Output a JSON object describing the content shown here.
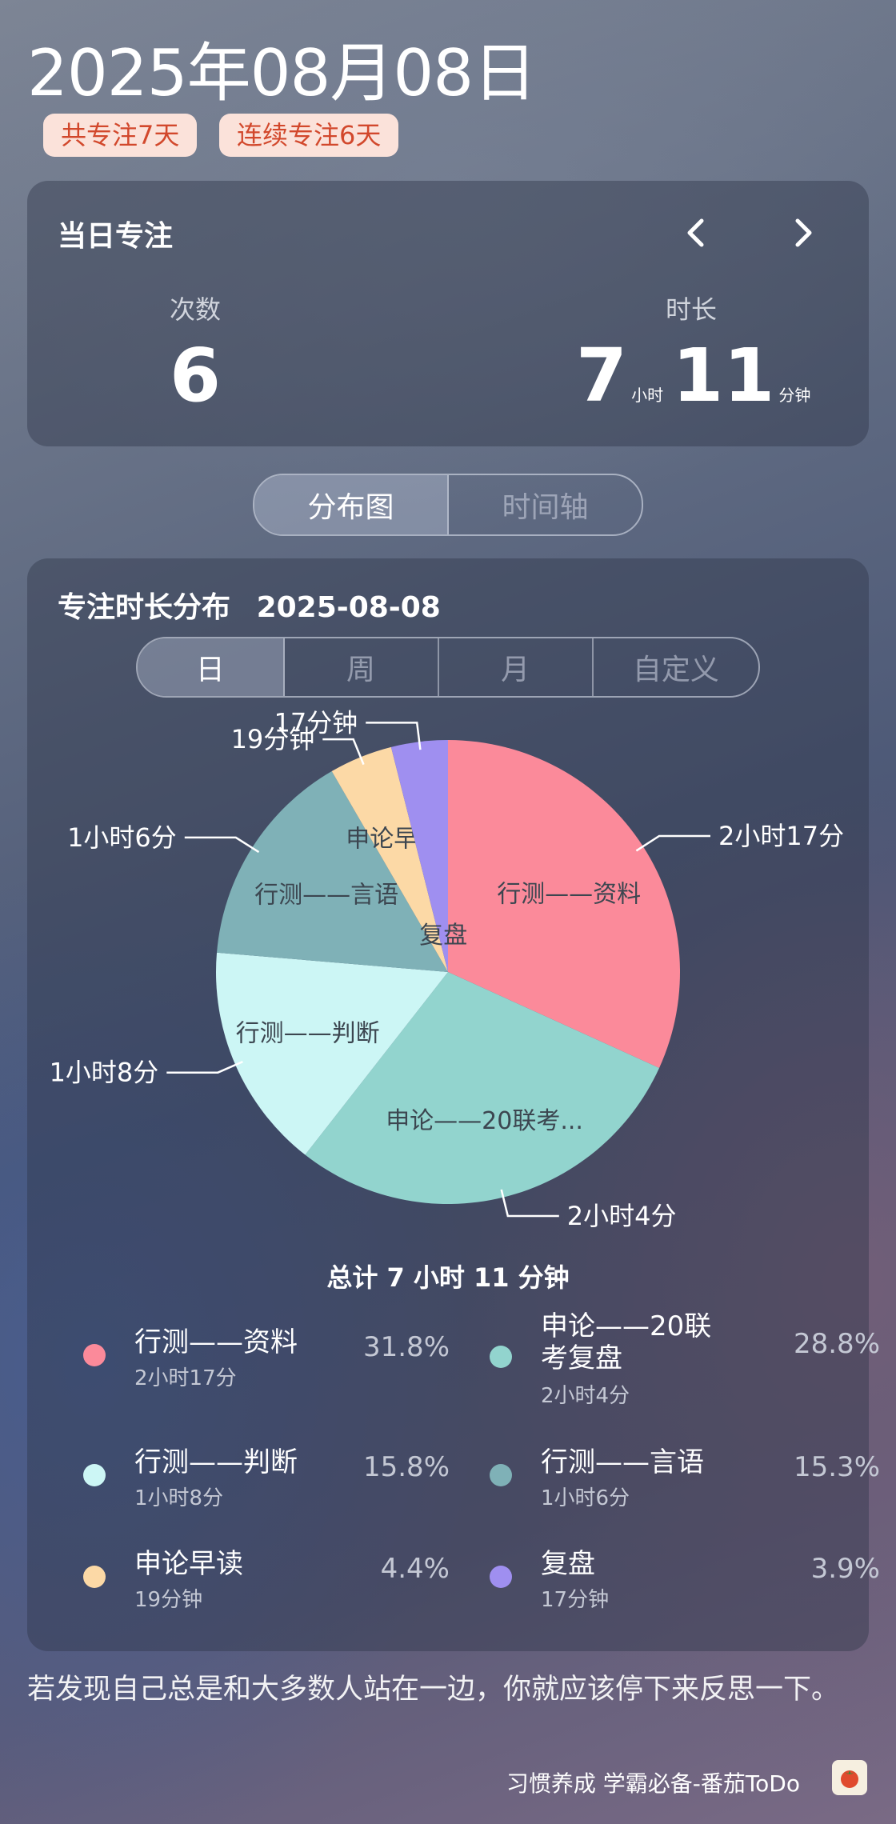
{
  "header": {
    "date": "2025年08月08日",
    "badge_total": "共专注7天",
    "badge_streak": "连续专注6天"
  },
  "daily": {
    "title": "当日专注",
    "prev_icon": "chevron-left-icon",
    "next_icon": "chevron-right-icon",
    "count_label": "次数",
    "count_value": "6",
    "duration_label": "时长",
    "hours_value": "7",
    "hours_unit": "小时",
    "minutes_value": "11",
    "minutes_unit": "分钟"
  },
  "view_tabs": [
    {
      "label": "分布图",
      "active": true
    },
    {
      "label": "时间轴",
      "active": false
    }
  ],
  "distribution": {
    "title": "专注时长分布",
    "date": "2025-08-08",
    "period_tabs": [
      {
        "label": "日",
        "active": true
      },
      {
        "label": "周",
        "active": false
      },
      {
        "label": "月",
        "active": false
      },
      {
        "label": "自定义",
        "active": false
      }
    ],
    "total": "总计 7 小时 11 分钟"
  },
  "chart_data": {
    "type": "pie",
    "unit": "minutes",
    "slices": [
      {
        "label": "行测——资料",
        "short_label": "行测——资料",
        "value": 137,
        "duration": "2小时17分",
        "percent": "31.8%",
        "color": "#fb8a9a"
      },
      {
        "label": "申论——20联考复盘",
        "short_label": "申论——20联考...",
        "value": 124,
        "duration": "2小时4分",
        "percent": "28.8%",
        "color": "#92d4ce"
      },
      {
        "label": "行测——判断",
        "short_label": "行测——判断",
        "value": 68,
        "duration": "1小时8分",
        "percent": "15.8%",
        "color": "#ccf6f5"
      },
      {
        "label": "行测——言语",
        "short_label": "行测——言语",
        "value": 66,
        "duration": "1小时6分",
        "percent": "15.3%",
        "color": "#7fb1b7"
      },
      {
        "label": "申论早读",
        "short_label": "申论早读",
        "value": 19,
        "duration": "19分钟",
        "percent": "4.4%",
        "color": "#fcd9a6"
      },
      {
        "label": "复盘",
        "short_label": "复盘",
        "value": 17,
        "duration": "17分钟",
        "percent": "3.9%",
        "color": "#9f8ff0"
      }
    ]
  },
  "legend": [
    {
      "name": "行测——资料",
      "duration": "2小时17分",
      "percent": "31.8%",
      "color": "#fb8a9a"
    },
    {
      "name": "申论——20联考复盘",
      "duration": "2小时4分",
      "percent": "28.8%",
      "color": "#92d4ce"
    },
    {
      "name": "行测——判断",
      "duration": "1小时8分",
      "percent": "15.8%",
      "color": "#ccf6f5"
    },
    {
      "name": "行测——言语",
      "duration": "1小时6分",
      "percent": "15.3%",
      "color": "#7fb1b7"
    },
    {
      "name": "申论早读",
      "duration": "19分钟",
      "percent": "4.4%",
      "color": "#fcd9a6"
    },
    {
      "name": "复盘",
      "duration": "17分钟",
      "percent": "3.9%",
      "color": "#9f8ff0"
    }
  ],
  "quote": "若发现自己总是和大多数人站在一边，你就应该停下来反思一下。",
  "footer": {
    "slogan": "习惯养成 学霸必备-番茄ToDo",
    "app_icon": "tomato-icon"
  }
}
